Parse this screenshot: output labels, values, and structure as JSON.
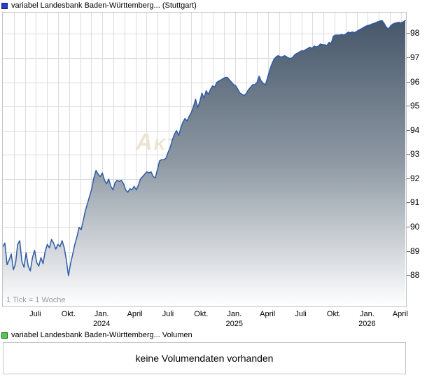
{
  "header": {
    "legend_label": "variabel Landesbank Baden-Württemberg... (Stuttgart)",
    "legend_color": "#2540c4",
    "legend_border": "#141f7a"
  },
  "chart_data": {
    "type": "area",
    "title": "variabel Landesbank Baden-Württemberg... (Stuttgart)",
    "exchange": "Stuttgart",
    "tick_note": "1 Tick = 1 Woche",
    "watermark": "Aktiencheck",
    "ylim": [
      86.73,
      98.88
    ],
    "y_ticks": [
      88,
      89,
      90,
      91,
      92,
      93,
      94,
      95,
      96,
      97,
      98
    ],
    "months_total": 36,
    "x_ticks": [
      {
        "m": 3,
        "line1": "Juli",
        "line2": ""
      },
      {
        "m": 6,
        "line1": "Okt.",
        "line2": ""
      },
      {
        "m": 9,
        "line1": "Jan.",
        "line2": "2024"
      },
      {
        "m": 12,
        "line1": "April",
        "line2": ""
      },
      {
        "m": 15,
        "line1": "Juli",
        "line2": ""
      },
      {
        "m": 18,
        "line1": "Okt.",
        "line2": ""
      },
      {
        "m": 21,
        "line1": "Jan.",
        "line2": "2025"
      },
      {
        "m": 24,
        "line1": "April",
        "line2": ""
      },
      {
        "m": 27,
        "line1": "Juli",
        "line2": ""
      },
      {
        "m": 30,
        "line1": "Okt.",
        "line2": ""
      },
      {
        "m": 33,
        "line1": "Jan.",
        "line2": "2026"
      },
      {
        "m": 36,
        "line1": "April",
        "line2": ""
      }
    ],
    "point_interval": "1 Woche",
    "line_color": "#2e5ba6",
    "area_gradient_top": "#46576a",
    "area_gradient_mid": "#8e99a4",
    "area_gradient_bottom": "#ffffff",
    "grid_color": "#dcdcdc",
    "watermark_color": "#ece4d3",
    "prices": [
      89.2,
      89.35,
      88.45,
      88.65,
      88.9,
      88.25,
      88.5,
      89.3,
      89.45,
      88.6,
      88.35,
      88.95,
      88.4,
      88.2,
      88.75,
      89.05,
      88.55,
      88.4,
      88.75,
      88.5,
      89.0,
      89.3,
      89.15,
      89.5,
      89.35,
      89.1,
      89.3,
      89.2,
      89.45,
      89.15,
      88.65,
      88.0,
      88.5,
      88.9,
      89.3,
      89.6,
      90.0,
      89.9,
      90.3,
      90.7,
      91.0,
      91.3,
      91.6,
      92.05,
      92.35,
      92.2,
      92.1,
      92.25,
      91.95,
      91.8,
      92.0,
      91.7,
      91.55,
      91.85,
      91.95,
      91.9,
      91.95,
      91.8,
      91.55,
      91.45,
      91.6,
      91.55,
      91.7,
      91.55,
      91.75,
      92.0,
      92.1,
      92.2,
      92.3,
      92.25,
      92.3,
      92.1,
      92.05,
      92.4,
      92.75,
      92.8,
      92.8,
      92.85,
      93.1,
      93.3,
      93.6,
      93.85,
      94.0,
      93.8,
      94.1,
      94.35,
      94.5,
      94.4,
      94.6,
      94.75,
      95.0,
      95.3,
      94.95,
      95.2,
      95.55,
      95.35,
      95.65,
      95.5,
      95.7,
      95.85,
      95.8,
      96.0,
      96.05,
      96.1,
      96.15,
      96.2,
      96.2,
      96.1,
      96.0,
      95.9,
      95.85,
      95.7,
      95.55,
      95.5,
      95.45,
      95.55,
      95.7,
      95.8,
      95.9,
      95.9,
      96.0,
      96.25,
      96.05,
      95.95,
      95.9,
      96.2,
      96.5,
      96.75,
      96.95,
      97.05,
      97.1,
      97.05,
      97.05,
      97.1,
      97.05,
      97.0,
      96.98,
      97.05,
      97.15,
      97.2,
      97.25,
      97.3,
      97.3,
      97.35,
      97.4,
      97.45,
      97.4,
      97.5,
      97.45,
      97.5,
      97.58,
      97.55,
      97.55,
      97.52,
      97.65,
      97.6,
      97.9,
      97.95,
      97.95,
      97.95,
      97.97,
      97.95,
      98.0,
      98.07,
      98.05,
      98.08,
      98.05,
      98.1,
      98.15,
      98.2,
      98.25,
      98.3,
      98.34,
      98.36,
      98.4,
      98.43,
      98.46,
      98.5,
      98.53,
      98.55,
      98.44,
      98.28,
      98.2,
      98.32,
      98.4,
      98.44,
      98.46,
      98.48,
      98.45,
      98.5,
      98.55
    ]
  },
  "volume": {
    "legend_label": "variabel Landesbank Baden-Württemberg... Volumen",
    "legend_color": "#50c850",
    "legend_border": "#166616",
    "message": "keine Volumendaten vorhanden"
  }
}
